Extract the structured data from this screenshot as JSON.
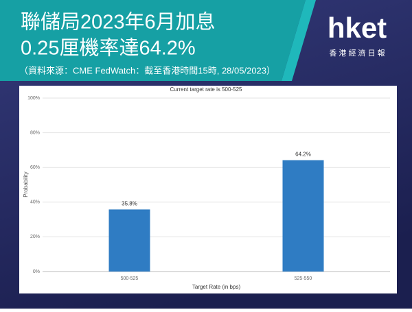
{
  "header": {
    "title_lines": [
      "聯儲局2023年6月加息",
      "0.25厘機率達64.2%"
    ],
    "source": "（資料來源：CME FedWatch：截至香港時間15時, 28/05/2023）"
  },
  "logo": {
    "name": "hket",
    "subtitle": "香 港 經 濟 日 報"
  },
  "chart_data": {
    "type": "bar",
    "title": "Current target rate is 500-525",
    "categories": [
      "500-525",
      "525-550"
    ],
    "values": [
      35.8,
      64.2
    ],
    "value_labels": [
      "35.8%",
      "64.2%"
    ],
    "color": "#2f7cc3",
    "x_label": "Target Rate (in bps)",
    "y_label": "Probability",
    "ylim": [
      0,
      100
    ],
    "yticks": [
      {
        "value": 0,
        "label": "0%"
      },
      {
        "value": 20,
        "label": "20%"
      },
      {
        "value": 40,
        "label": "40%"
      },
      {
        "value": 60,
        "label": "60%"
      },
      {
        "value": 80,
        "label": "80%"
      },
      {
        "value": 100,
        "label": "100%"
      }
    ],
    "grid": true
  }
}
